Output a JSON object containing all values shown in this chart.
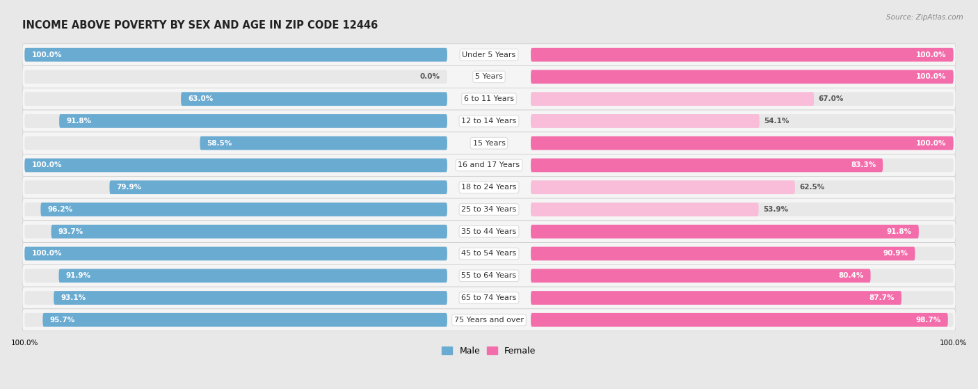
{
  "title": "INCOME ABOVE POVERTY BY SEX AND AGE IN ZIP CODE 12446",
  "source": "Source: ZipAtlas.com",
  "categories": [
    "Under 5 Years",
    "5 Years",
    "6 to 11 Years",
    "12 to 14 Years",
    "15 Years",
    "16 and 17 Years",
    "18 to 24 Years",
    "25 to 34 Years",
    "35 to 44 Years",
    "45 to 54 Years",
    "55 to 64 Years",
    "65 to 74 Years",
    "75 Years and over"
  ],
  "male_values": [
    100.0,
    0.0,
    63.0,
    91.8,
    58.5,
    100.0,
    79.9,
    96.2,
    93.7,
    100.0,
    91.9,
    93.1,
    95.7
  ],
  "female_values": [
    100.0,
    100.0,
    67.0,
    54.1,
    100.0,
    83.3,
    62.5,
    53.9,
    91.8,
    90.9,
    80.4,
    87.7,
    98.7
  ],
  "male_color": "#6aabd2",
  "female_color": "#f46dab",
  "male_color_light": "#c8dff0",
  "female_color_light": "#f9bcd9",
  "background_color": "#e8e8e8",
  "row_bg_color": "#f5f5f5",
  "bar_track_color": "#e8e8e8",
  "label_box_color": "#ffffff",
  "title_fontsize": 10.5,
  "label_fontsize": 8.0,
  "value_fontsize": 7.5,
  "legend_fontsize": 9,
  "max_val": 100.0,
  "xlabel_bottom_left": "100.0%",
  "xlabel_bottom_right": "100.0%"
}
